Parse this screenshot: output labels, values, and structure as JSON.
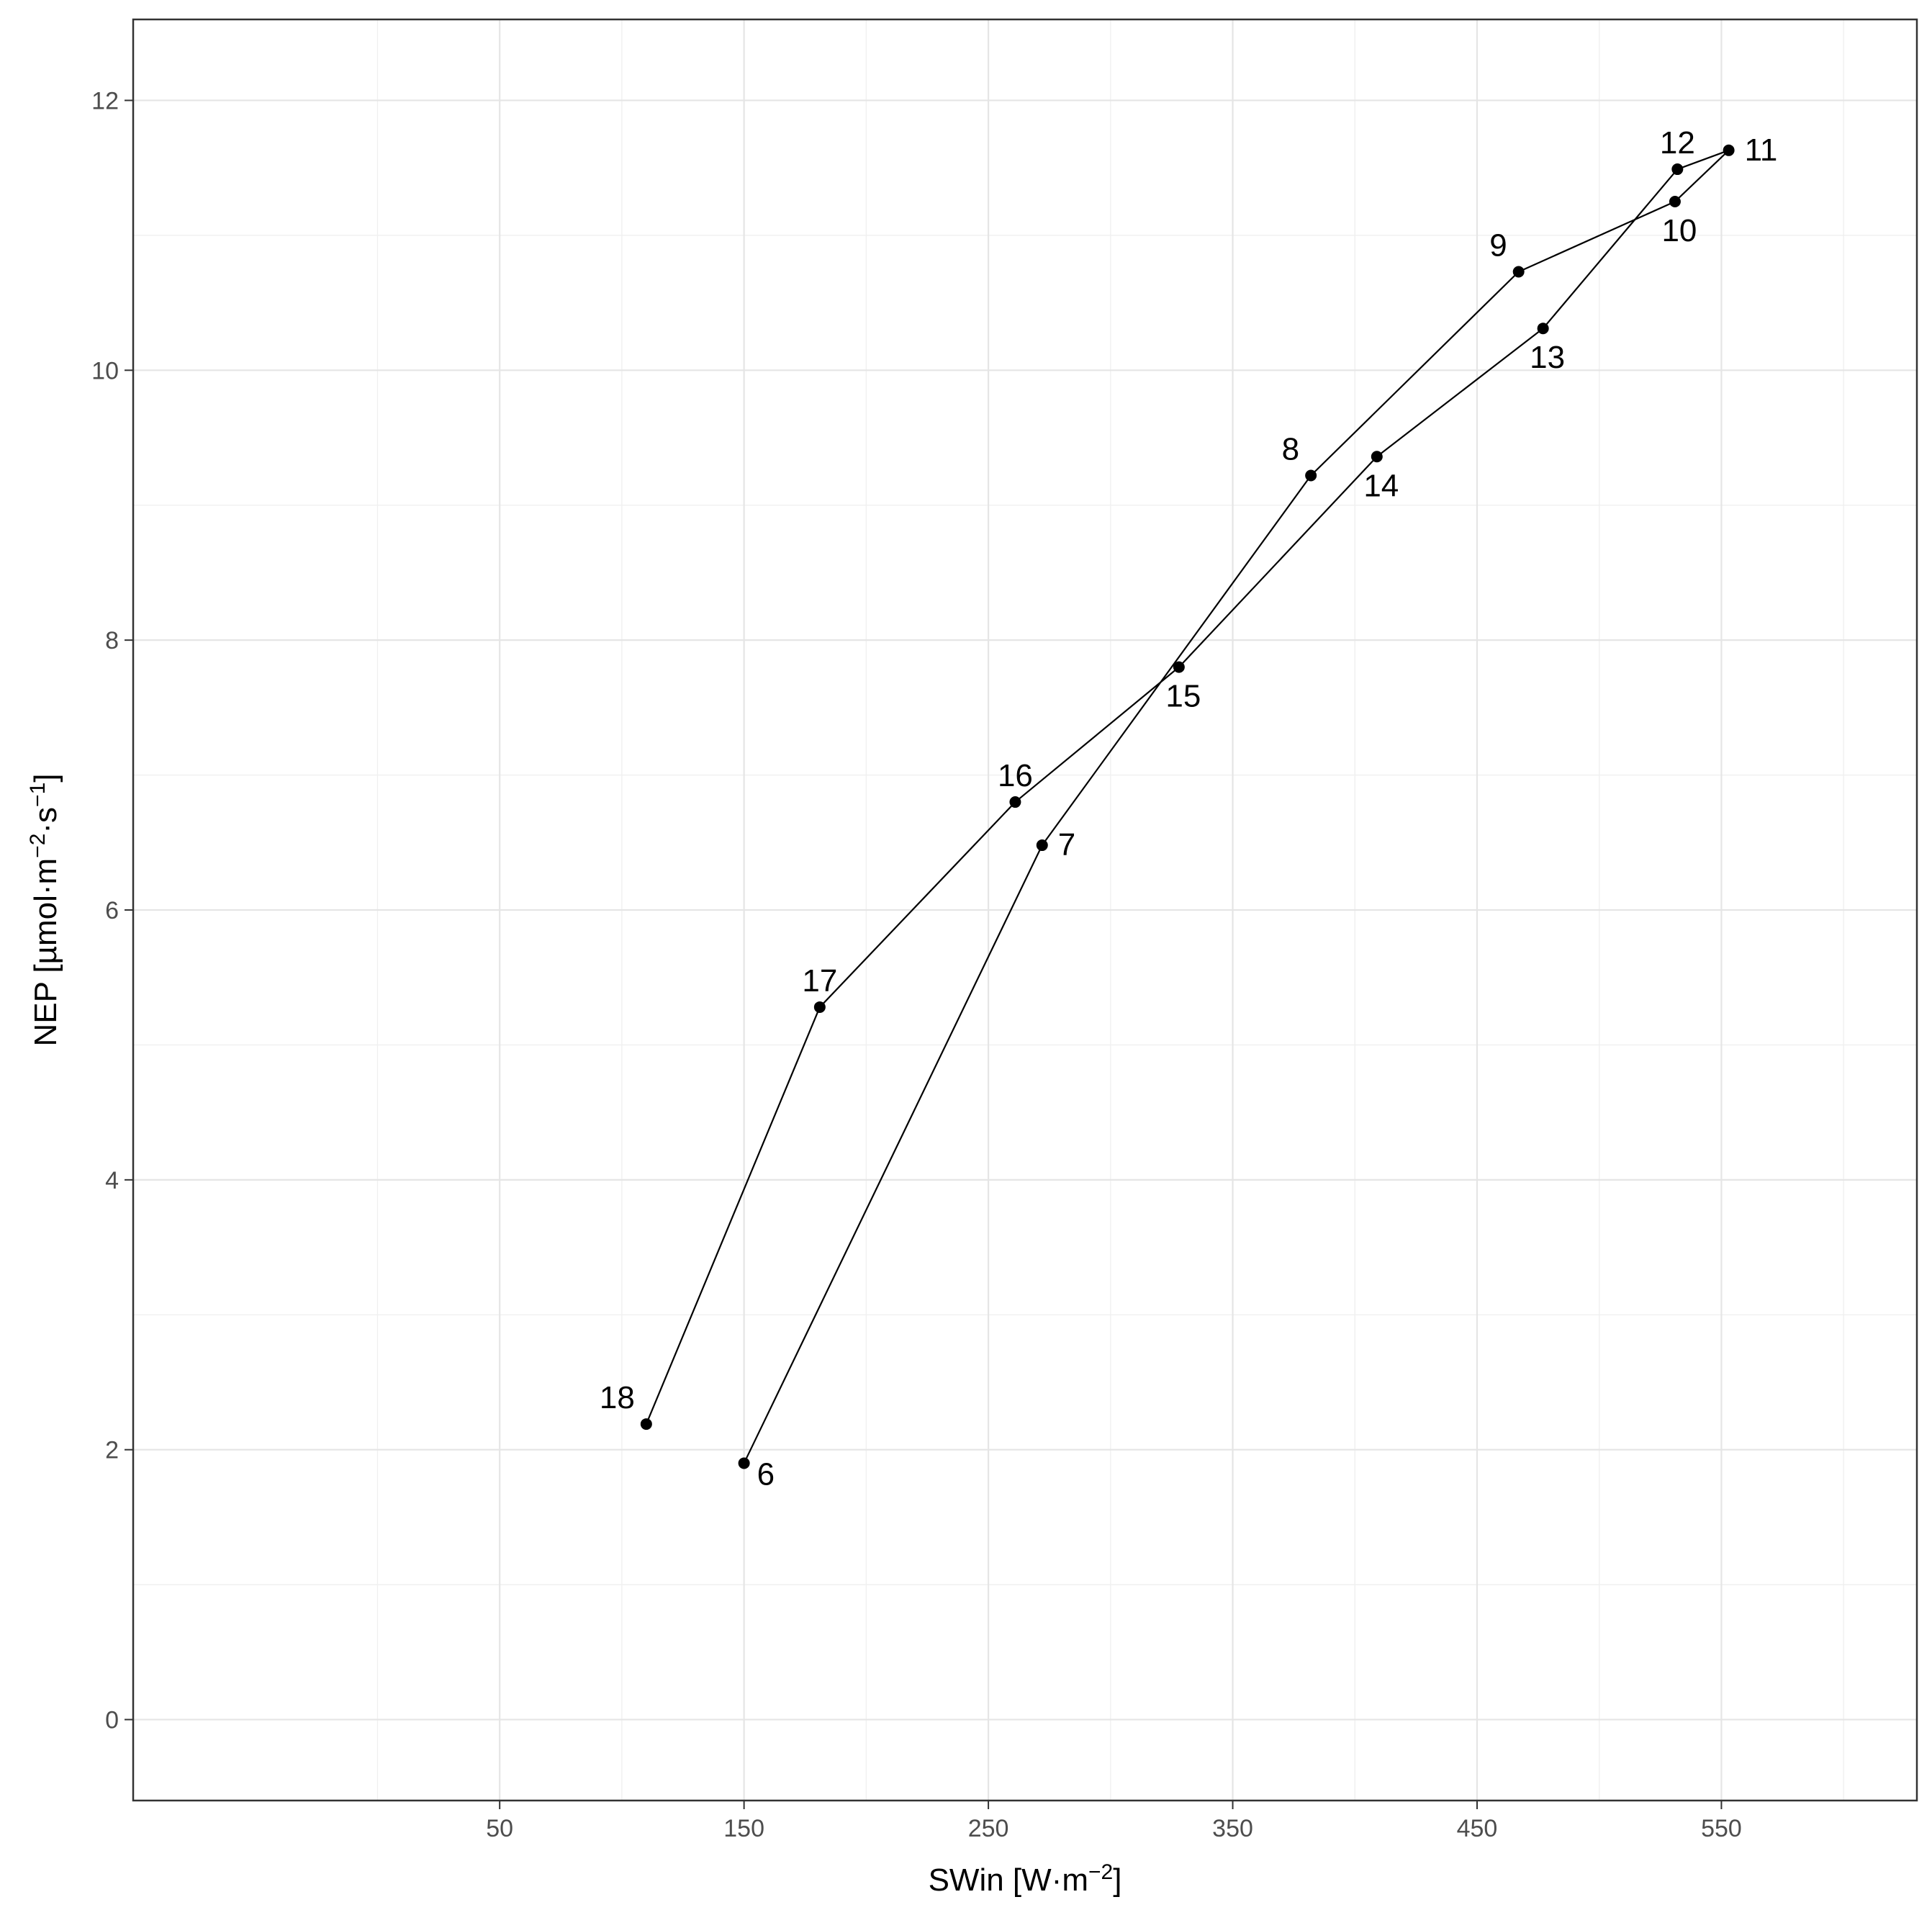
{
  "chart_data": {
    "type": "line",
    "xlabel": "SWin",
    "xlabel_unit": "W·m⁻²",
    "ylabel": "NEP",
    "ylabel_unit": "µmol·m⁻²·s⁻¹",
    "xlim": [
      -100,
      630
    ],
    "ylim": [
      -0.6,
      12.6
    ],
    "x_ticks": [
      50,
      150,
      250,
      350,
      450,
      550
    ],
    "y_ticks": [
      0,
      2,
      4,
      6,
      8,
      10,
      12
    ],
    "x_tick_labels": [
      "50",
      "150",
      "250",
      "350",
      "450",
      "550"
    ],
    "y_tick_labels": [
      "0",
      "2",
      "4",
      "6",
      "8",
      "10",
      "12"
    ],
    "grid": true,
    "legend": "none",
    "series": [
      {
        "points": [
          {
            "label": "6",
            "x": 150,
            "y": 1.9
          },
          {
            "label": "7",
            "x": 272,
            "y": 6.48
          },
          {
            "label": "8",
            "x": 382,
            "y": 9.22
          },
          {
            "label": "9",
            "x": 467,
            "y": 10.73
          },
          {
            "label": "10",
            "x": 531,
            "y": 11.25
          },
          {
            "label": "11",
            "x": 553,
            "y": 11.63
          },
          {
            "label": "12",
            "x": 532,
            "y": 11.49
          },
          {
            "label": "13",
            "x": 477,
            "y": 10.31
          },
          {
            "label": "14",
            "x": 409,
            "y": 9.36
          },
          {
            "label": "15",
            "x": 328,
            "y": 7.8
          },
          {
            "label": "16",
            "x": 261,
            "y": 6.8
          },
          {
            "label": "17",
            "x": 181,
            "y": 5.28
          },
          {
            "label": "18",
            "x": 110,
            "y": 2.19
          }
        ]
      }
    ],
    "point_label_placement": {
      "6": "below-right",
      "7": "right",
      "8": "upper-left",
      "9": "upper-left",
      "10": "below",
      "11": "right",
      "12": "above",
      "13": "below",
      "14": "below",
      "15": "below",
      "16": "above",
      "17": "above",
      "18": "upper-left"
    }
  }
}
